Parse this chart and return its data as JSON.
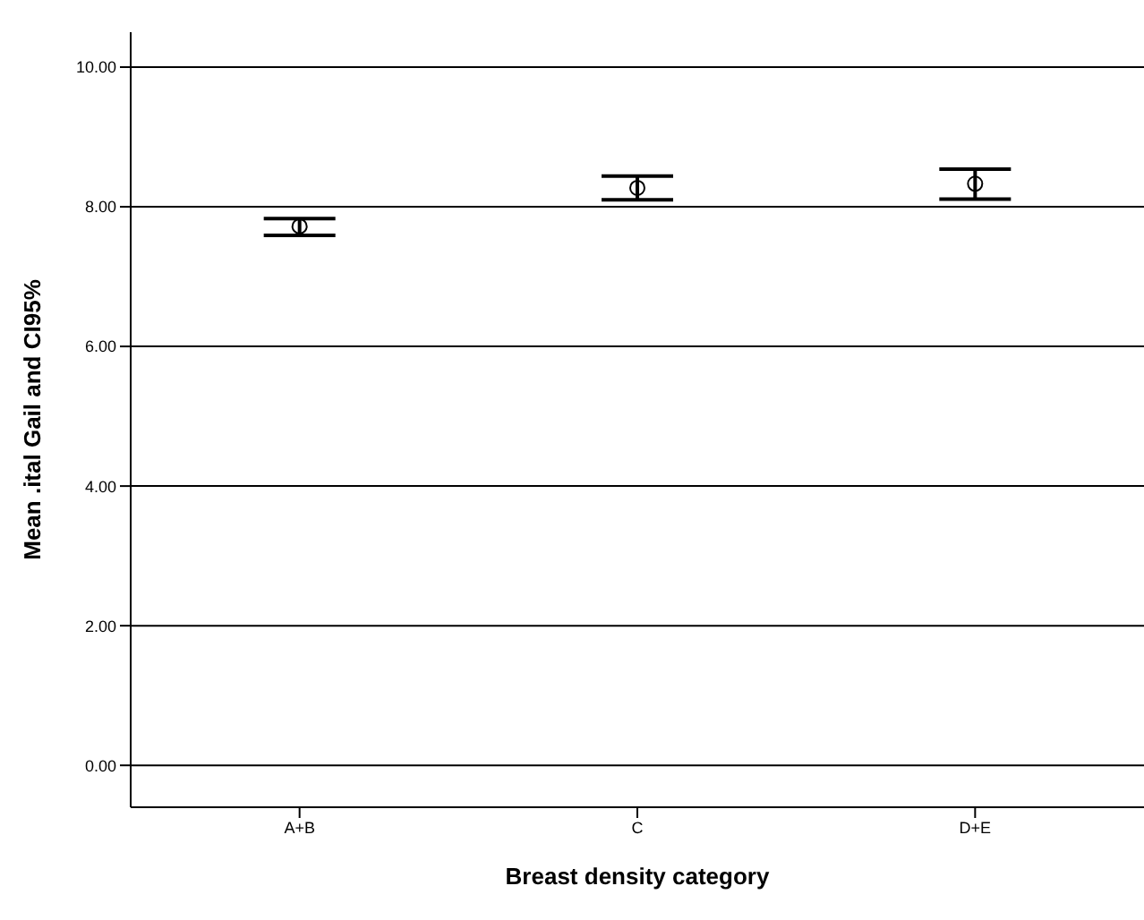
{
  "chart_data": {
    "type": "scatter",
    "xlabel": "Breast density category",
    "ylabel": "Mean .ital Gail and CI95%",
    "categories": [
      "A+B",
      "C",
      "D+E"
    ],
    "values": [
      7.72,
      8.27,
      8.33
    ],
    "errors": [
      [
        7.59,
        7.83
      ],
      [
        8.1,
        8.44
      ],
      [
        8.11,
        8.54
      ]
    ],
    "color": "#000000",
    "marker": "circle",
    "ylim": [
      -0.6,
      10.5
    ],
    "yticks": [
      {
        "value": 0,
        "label": "0.00"
      },
      {
        "value": 2,
        "label": "2.00"
      },
      {
        "value": 4,
        "label": "4.00"
      },
      {
        "value": 6,
        "label": "6.00"
      },
      {
        "value": 8,
        "label": "8.00"
      },
      {
        "value": 10,
        "label": "10.00"
      }
    ],
    "grid": "y",
    "legend": false
  }
}
